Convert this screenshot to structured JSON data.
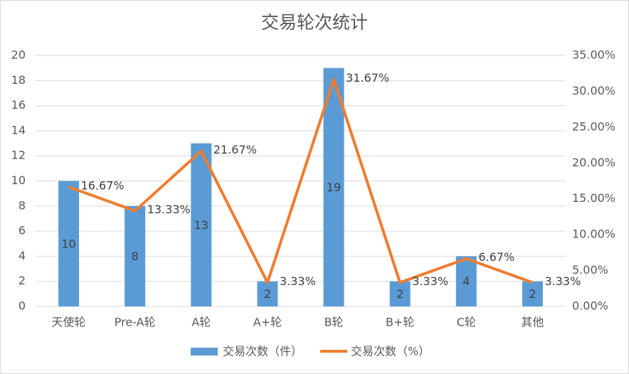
{
  "chart_data": {
    "type": "bar-line",
    "title": "交易轮次统计",
    "categories": [
      "天使轮",
      "Pre-A轮",
      "A轮",
      "A+轮",
      "B轮",
      "B+轮",
      "C轮",
      "其他"
    ],
    "series": [
      {
        "name": "交易次数（件）",
        "type": "bar",
        "color": "#5b9bd5",
        "values": [
          10,
          8,
          13,
          2,
          19,
          2,
          4,
          2
        ]
      },
      {
        "name": "交易次数（%）",
        "type": "line",
        "axis": "y2",
        "color": "#ed7d31",
        "values": [
          16.67,
          13.33,
          21.67,
          3.33,
          31.67,
          3.33,
          6.67,
          3.33
        ],
        "value_labels": [
          "16.67%",
          "13.33%",
          "21.67%",
          "3.33%",
          "31.67%",
          "3.33%",
          "6.67%",
          "3.33%"
        ]
      }
    ],
    "ylim": [
      0,
      20
    ],
    "yticks": [
      0,
      2,
      4,
      6,
      8,
      10,
      12,
      14,
      16,
      18,
      20
    ],
    "y2lim": [
      0,
      35
    ],
    "y2ticks": [
      {
        "value": 0,
        "label": "0.00%"
      },
      {
        "value": 5,
        "label": "5.00%"
      },
      {
        "value": 10,
        "label": "10.00%"
      },
      {
        "value": 15,
        "label": "15.00%"
      },
      {
        "value": 20,
        "label": "20.00%"
      },
      {
        "value": 25,
        "label": "25.00%"
      },
      {
        "value": 30,
        "label": "30.00%"
      },
      {
        "value": 35,
        "label": "35.00%"
      }
    ],
    "grid": true,
    "legend": "bottom"
  }
}
